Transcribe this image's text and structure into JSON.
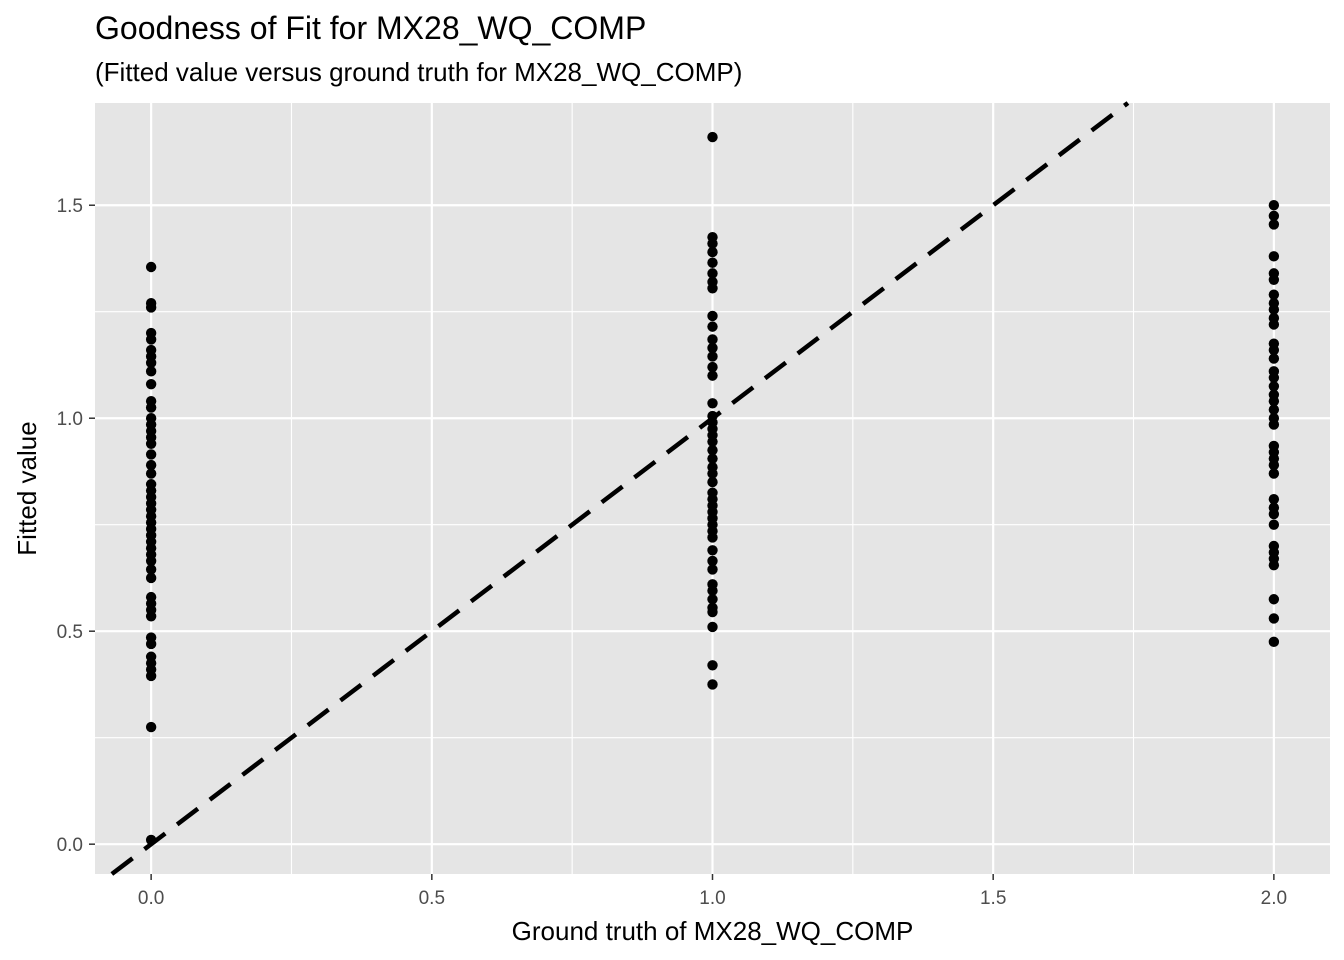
{
  "chart_data": {
    "type": "scatter",
    "title": "Goodness of Fit for MX28_WQ_COMP",
    "subtitle": "(Fitted value versus ground truth for MX28_WQ_COMP)",
    "xlabel": "Ground truth of MX28_WQ_COMP",
    "ylabel": "Fitted value",
    "xlim": [
      -0.1,
      2.1
    ],
    "ylim": [
      -0.07,
      1.74
    ],
    "x_ticks": [
      0.0,
      0.5,
      1.0,
      1.5,
      2.0
    ],
    "x_tick_labels": [
      "0.0",
      "0.5",
      "1.0",
      "1.5",
      "2.0"
    ],
    "y_ticks": [
      0.0,
      0.5,
      1.0,
      1.5
    ],
    "y_tick_labels": [
      "0.0",
      "0.5",
      "1.0",
      "1.5"
    ],
    "grid": true,
    "reference_line": {
      "slope": 1,
      "intercept": 0,
      "style": "dashed",
      "color": "#000000"
    },
    "point_color": "#000000",
    "panel_color": "#e5e5e5",
    "grid_color": "#ffffff",
    "series": [
      {
        "x": 0,
        "y": [
          1.355,
          1.27,
          1.26,
          1.2,
          1.185,
          1.16,
          1.145,
          1.13,
          1.11,
          1.08,
          1.04,
          1.025,
          1.0,
          0.985,
          0.97,
          0.955,
          0.94,
          0.915,
          0.89,
          0.87,
          0.845,
          0.83,
          0.815,
          0.8,
          0.785,
          0.77,
          0.755,
          0.74,
          0.725,
          0.71,
          0.695,
          0.68,
          0.665,
          0.645,
          0.625,
          0.58,
          0.565,
          0.55,
          0.535,
          0.485,
          0.47,
          0.44,
          0.425,
          0.41,
          0.395,
          0.275,
          0.01
        ]
      },
      {
        "x": 1,
        "y": [
          1.66,
          1.425,
          1.41,
          1.39,
          1.365,
          1.34,
          1.32,
          1.305,
          1.24,
          1.215,
          1.185,
          1.165,
          1.145,
          1.12,
          1.1,
          1.035,
          1.005,
          0.99,
          0.975,
          0.96,
          0.945,
          0.925,
          0.905,
          0.885,
          0.87,
          0.85,
          0.825,
          0.81,
          0.795,
          0.78,
          0.765,
          0.75,
          0.735,
          0.72,
          0.69,
          0.665,
          0.645,
          0.61,
          0.595,
          0.575,
          0.555,
          0.545,
          0.51,
          0.42,
          0.375
        ]
      },
      {
        "x": 2,
        "y": [
          1.5,
          1.475,
          1.455,
          1.38,
          1.34,
          1.325,
          1.29,
          1.27,
          1.255,
          1.235,
          1.22,
          1.175,
          1.16,
          1.14,
          1.11,
          1.095,
          1.075,
          1.055,
          1.04,
          1.02,
          1.0,
          0.985,
          0.935,
          0.92,
          0.905,
          0.89,
          0.87,
          0.81,
          0.79,
          0.775,
          0.75,
          0.7,
          0.685,
          0.67,
          0.655,
          0.575,
          0.53,
          0.475
        ]
      }
    ]
  }
}
